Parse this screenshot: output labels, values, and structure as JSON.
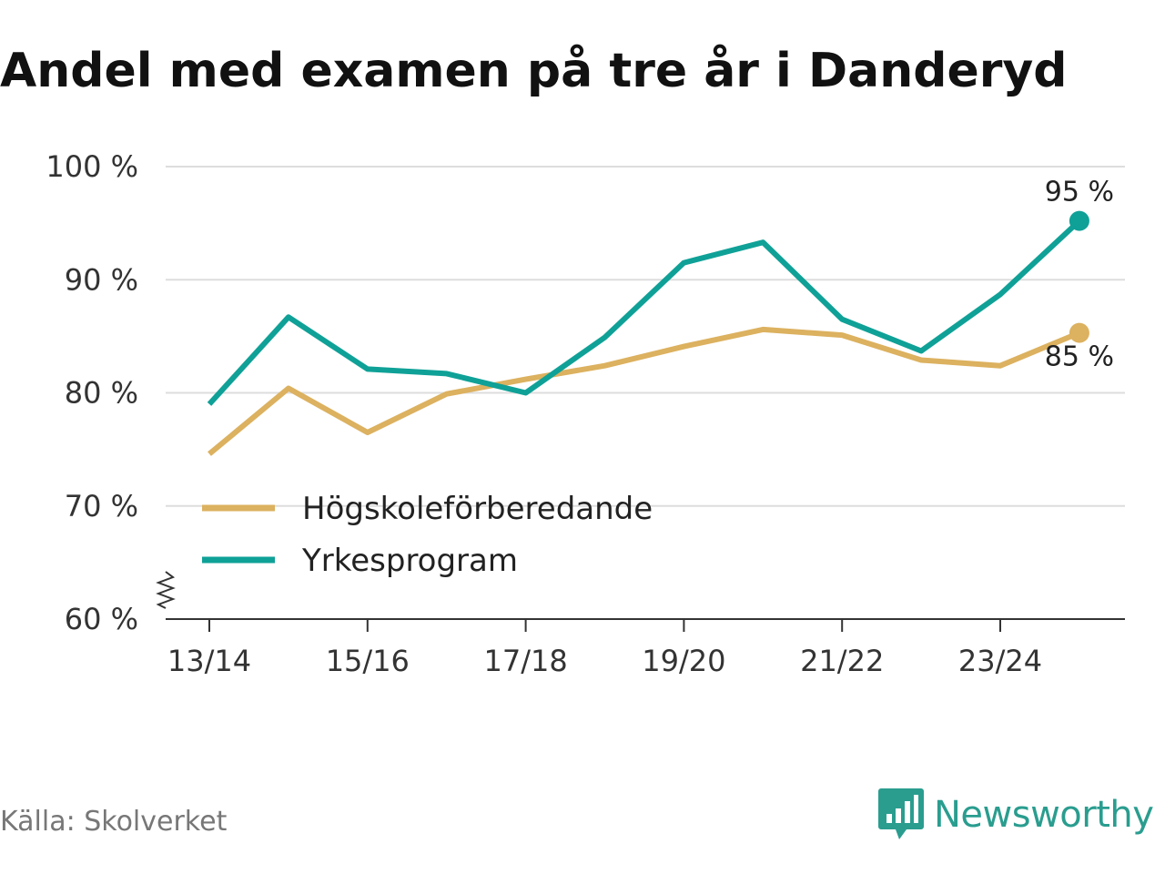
{
  "chart_data": {
    "type": "line",
    "title": "Andel med examen på tre år i Danderyd",
    "categories": [
      "13/14",
      "14/15",
      "15/16",
      "16/17",
      "17/18",
      "18/19",
      "19/20",
      "20/21",
      "21/22",
      "22/23",
      "23/24",
      "24/25"
    ],
    "tick_labels": [
      "13/14",
      "15/16",
      "17/18",
      "19/20",
      "21/22",
      "23/24"
    ],
    "y_ticks": [
      60,
      70,
      80,
      90,
      100
    ],
    "y_tick_labels": [
      "60 %",
      "70 %",
      "80 %",
      "90 %",
      "100 %"
    ],
    "ylim": [
      60,
      100
    ],
    "axis_break": true,
    "series": [
      {
        "name": "Högskoleförberedande",
        "color": "#dcb15f",
        "values": [
          74.6,
          80.4,
          76.5,
          79.9,
          81.2,
          82.4,
          84.1,
          85.6,
          85.1,
          82.9,
          82.4,
          85.3
        ],
        "end_label": "85 %"
      },
      {
        "name": "Yrkesprogram",
        "color": "#0fa197",
        "values": [
          79.0,
          86.7,
          82.1,
          81.7,
          80.0,
          84.9,
          91.5,
          93.3,
          86.5,
          83.7,
          88.7,
          95.2
        ],
        "end_label": "95 %"
      }
    ],
    "legend_position": "bottom-left",
    "grid": true
  },
  "footer": {
    "source": "Källa: Skolverket",
    "brand": "Newsworthy"
  },
  "colors": {
    "grid": "#dddddd",
    "axis": "#333333",
    "brand": "#2a9d8f"
  }
}
